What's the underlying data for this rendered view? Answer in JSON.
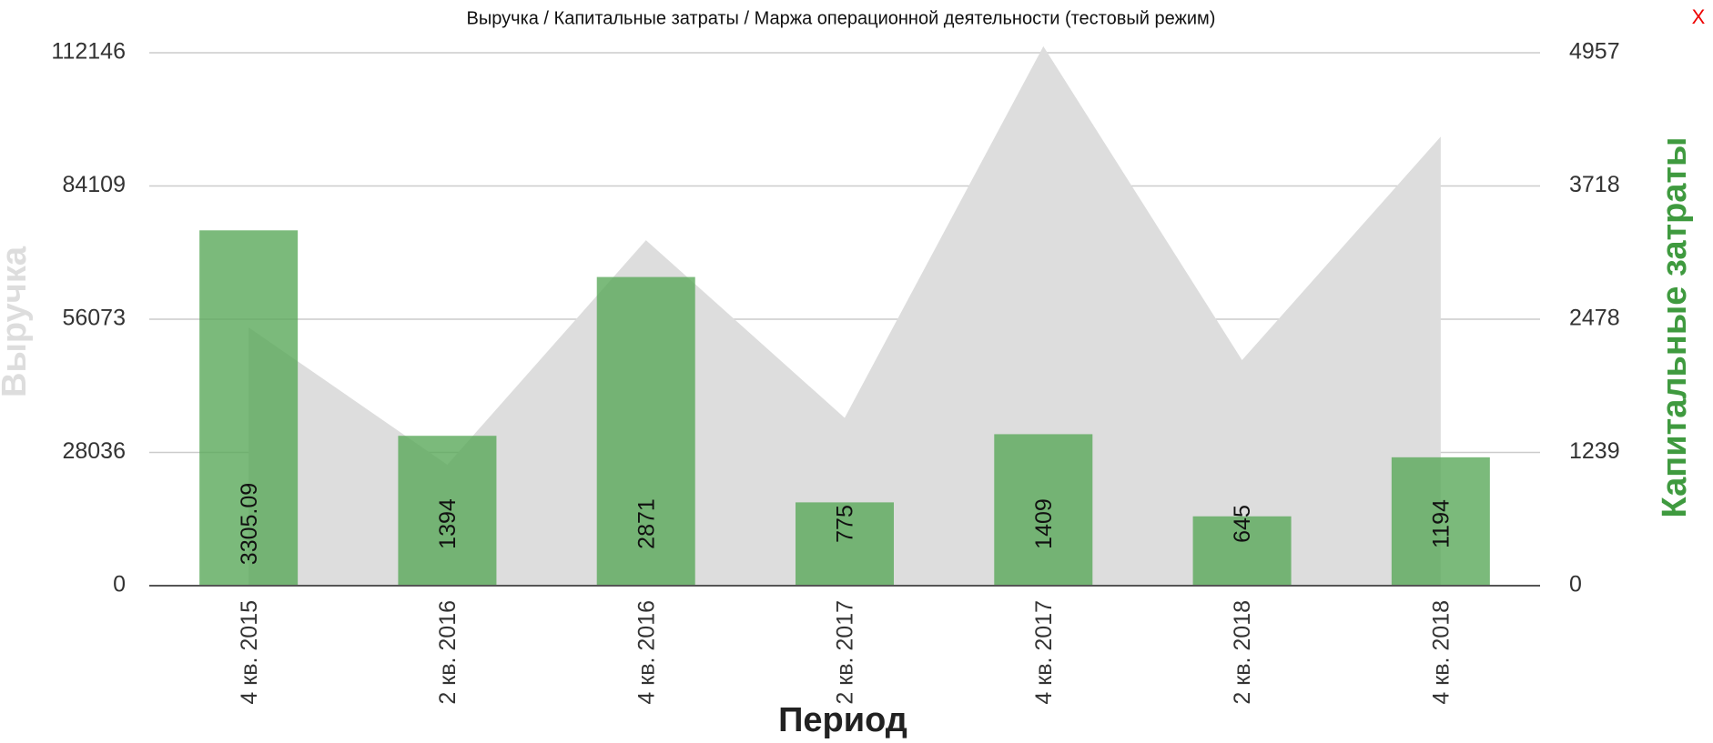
{
  "chart_data": {
    "type": "bar",
    "title": "Выручка / Капитальные затраты / Маржа операционной деятельности (тестовый режим)",
    "x_label": "Период",
    "categories": [
      "4 кв. 2015",
      "2 кв. 2016",
      "4 кв. 2016",
      "2 кв. 2017",
      "4 кв. 2017",
      "2 кв. 2018",
      "4 кв. 2018"
    ],
    "series": [
      {
        "name": "Выручка",
        "type": "area",
        "color": "#dddddd",
        "values": [
          54350,
          25460,
          72700,
          35320,
          113500,
          47470,
          94490
        ]
      },
      {
        "name": "Капитальные затраты",
        "type": "bar",
        "axis": "y2",
        "color": "#5aa95a",
        "values": [
          3305.09,
          1394,
          2871,
          775,
          1409,
          645,
          1194
        ]
      }
    ],
    "ylim": [
      0,
      112146
    ],
    "yticks": [
      0,
      28036,
      56073,
      84109,
      112146
    ],
    "y2lim": [
      0,
      4957
    ],
    "y2ticks": [
      0,
      1239,
      2478,
      3718,
      4957
    ],
    "grid": true
  },
  "close_label": "X"
}
